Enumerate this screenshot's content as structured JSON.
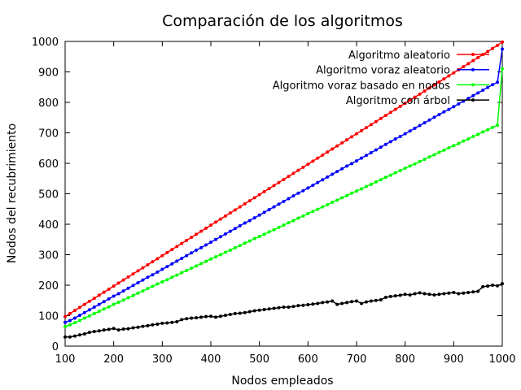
{
  "chart_data": {
    "type": "line",
    "title": "Comparación de los algoritmos",
    "xlabel": "Nodos empleados",
    "ylabel": "Nodos del recubrimiento",
    "xlim": [
      100,
      1000
    ],
    "ylim": [
      0,
      1000
    ],
    "xticks": [
      100,
      200,
      300,
      400,
      500,
      600,
      700,
      800,
      900,
      1000
    ],
    "yticks": [
      0,
      100,
      200,
      300,
      400,
      500,
      600,
      700,
      800,
      900,
      1000
    ],
    "grid": false,
    "legend_position": "top-right",
    "x": [
      100,
      110,
      120,
      130,
      140,
      150,
      160,
      170,
      180,
      190,
      200,
      210,
      220,
      230,
      240,
      250,
      260,
      270,
      280,
      290,
      300,
      310,
      320,
      330,
      340,
      350,
      360,
      370,
      380,
      390,
      400,
      410,
      420,
      430,
      440,
      450,
      460,
      470,
      480,
      490,
      500,
      510,
      520,
      530,
      540,
      550,
      560,
      570,
      580,
      590,
      600,
      610,
      620,
      630,
      640,
      650,
      660,
      670,
      680,
      690,
      700,
      710,
      720,
      730,
      740,
      750,
      760,
      770,
      780,
      790,
      800,
      810,
      820,
      830,
      840,
      850,
      860,
      870,
      880,
      890,
      900,
      910,
      920,
      930,
      940,
      950,
      960,
      970,
      980,
      990,
      1000
    ],
    "series": [
      {
        "name": "Algoritmo aleatorio",
        "color": "#ff0000",
        "values": [
          97,
          107,
          117,
          127,
          137,
          147,
          157,
          167,
          177,
          187,
          197,
          207,
          217,
          227,
          237,
          247,
          257,
          267,
          277,
          287,
          297,
          307,
          317,
          327,
          337,
          347,
          357,
          367,
          377,
          387,
          397,
          407,
          417,
          427,
          437,
          447,
          457,
          467,
          477,
          487,
          497,
          507,
          517,
          527,
          537,
          547,
          557,
          567,
          577,
          587,
          597,
          607,
          617,
          627,
          637,
          647,
          657,
          667,
          677,
          687,
          697,
          707,
          717,
          727,
          737,
          747,
          757,
          767,
          777,
          787,
          797,
          807,
          817,
          827,
          837,
          847,
          857,
          867,
          877,
          887,
          897,
          907,
          917,
          927,
          937,
          947,
          957,
          967,
          977,
          987,
          998
        ]
      },
      {
        "name": "Algoritmo voraz aleatorio",
        "color": "#0000ff",
        "values": [
          78,
          84,
          92,
          101,
          110,
          119,
          128,
          137,
          146,
          155,
          164,
          172,
          181,
          190,
          199,
          208,
          217,
          226,
          234,
          243,
          252,
          261,
          270,
          279,
          288,
          297,
          306,
          315,
          323,
          332,
          341,
          350,
          359,
          368,
          377,
          386,
          395,
          404,
          412,
          421,
          430,
          439,
          448,
          457,
          466,
          475,
          484,
          493,
          502,
          510,
          519,
          528,
          537,
          546,
          555,
          564,
          573,
          582,
          591,
          599,
          608,
          617,
          626,
          635,
          644,
          653,
          662,
          671,
          680,
          688,
          697,
          706,
          715,
          724,
          733,
          742,
          751,
          760,
          769,
          777,
          786,
          795,
          804,
          813,
          822,
          831,
          840,
          849,
          858,
          866,
          975
        ]
      },
      {
        "name": "Algoritmo voraz basado en nodos",
        "color": "#00ff00",
        "values": [
          64,
          70,
          77,
          84,
          92,
          99,
          107,
          114,
          122,
          129,
          137,
          144,
          151,
          159,
          166,
          174,
          181,
          189,
          196,
          204,
          211,
          218,
          226,
          233,
          241,
          248,
          256,
          263,
          271,
          278,
          286,
          293,
          300,
          308,
          315,
          323,
          330,
          338,
          345,
          353,
          360,
          367,
          375,
          382,
          390,
          397,
          405,
          412,
          420,
          427,
          435,
          442,
          449,
          457,
          464,
          472,
          479,
          487,
          494,
          502,
          509,
          516,
          524,
          531,
          539,
          546,
          554,
          561,
          569,
          576,
          584,
          591,
          598,
          606,
          613,
          621,
          628,
          636,
          643,
          651,
          658,
          665,
          673,
          680,
          688,
          695,
          703,
          710,
          718,
          725,
          910
        ]
      },
      {
        "name": "Algoritmo con árbol",
        "color": "#000000",
        "values": [
          30,
          30,
          33,
          37,
          40,
          45,
          48,
          50,
          53,
          55,
          58,
          53,
          56,
          57,
          60,
          62,
          65,
          67,
          70,
          72,
          75,
          76,
          78,
          80,
          87,
          90,
          92,
          93,
          95,
          97,
          98,
          95,
          98,
          101,
          104,
          107,
          108,
          110,
          113,
          116,
          118,
          120,
          122,
          124,
          126,
          128,
          128,
          130,
          133,
          134,
          136,
          138,
          140,
          143,
          145,
          148,
          137,
          140,
          143,
          146,
          148,
          140,
          145,
          148,
          150,
          152,
          160,
          163,
          165,
          167,
          170,
          168,
          172,
          175,
          172,
          170,
          168,
          170,
          172,
          174,
          176,
          172,
          174,
          176,
          178,
          180,
          195,
          197,
          200,
          198,
          205
        ]
      }
    ]
  }
}
